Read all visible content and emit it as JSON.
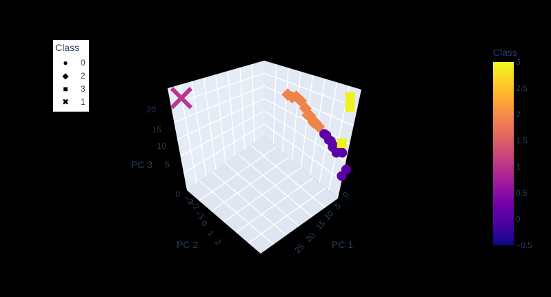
{
  "chart_data": {
    "type": "scatter3d",
    "axes": {
      "x": {
        "title": "PC 1",
        "ticks": [
          "0",
          "5",
          "10",
          "15",
          "20",
          "25"
        ]
      },
      "y": {
        "title": "PC 2",
        "ticks": [
          "−3",
          "−2",
          "−1",
          "0",
          "1",
          "2"
        ]
      },
      "z": {
        "title": "PC 3",
        "ticks": [
          "0",
          "5",
          "10",
          "15",
          "20"
        ]
      }
    },
    "legend": {
      "title": "Class",
      "entries": [
        {
          "label": "0",
          "symbol": "circle"
        },
        {
          "label": "2",
          "symbol": "diamond"
        },
        {
          "label": "3",
          "symbol": "square"
        },
        {
          "label": "1",
          "symbol": "x"
        }
      ]
    },
    "colorbar": {
      "title": "Class",
      "range": [
        -0.5,
        3
      ],
      "ticks": [
        "3",
        "2.5",
        "2",
        "1.5",
        "1",
        "0.5",
        "0",
        "−0.5"
      ],
      "colors": [
        "#0d0887",
        "#46039f",
        "#7201a8",
        "#9c179e",
        "#bd3786",
        "#d8576b",
        "#ed7953",
        "#fb9f3a",
        "#fdca26",
        "#f0f921"
      ]
    },
    "series": [
      {
        "class": 0,
        "symbol": "circle",
        "color": "#5c01a6",
        "points": [
          [
            15,
            -1.8,
            10
          ],
          [
            16,
            -1.7,
            10.5
          ],
          [
            17,
            -1.6,
            10
          ],
          [
            18,
            -1.5,
            10.5
          ],
          [
            19,
            -1.4,
            10
          ],
          [
            19.5,
            -1.4,
            9.5
          ],
          [
            20,
            -1.3,
            10
          ],
          [
            21,
            -1.3,
            9.8
          ],
          [
            18.5,
            -1.5,
            9
          ],
          [
            20.5,
            -1.2,
            9.2
          ],
          [
            25,
            -0.3,
            14
          ],
          [
            28,
            0.4,
            12
          ],
          [
            27,
            0.6,
            9.5
          ]
        ]
      },
      {
        "class": 2,
        "symbol": "diamond",
        "color": "#ee8447",
        "points": [
          [
            0,
            -3,
            9
          ],
          [
            2,
            -2.8,
            10
          ],
          [
            4,
            -2.6,
            12
          ],
          [
            6,
            -2.4,
            12.5
          ],
          [
            8,
            -2.2,
            12
          ],
          [
            10,
            -2,
            11.5
          ],
          [
            12,
            -1.9,
            11
          ],
          [
            13,
            -1.9,
            10.6
          ],
          [
            9,
            -2.1,
            10.8
          ],
          [
            11,
            -2,
            10.2
          ]
        ]
      },
      {
        "class": 3,
        "symbol": "square",
        "color": "#eff120",
        "points": [
          [
            22,
            -2.6,
            26
          ],
          [
            22,
            -2.5,
            23
          ],
          [
            25,
            -0.3,
            17
          ]
        ]
      },
      {
        "class": 1,
        "symbol": "x",
        "color": "#b7378e",
        "points": [
          [
            -20,
            2.5,
            0
          ]
        ]
      }
    ]
  }
}
